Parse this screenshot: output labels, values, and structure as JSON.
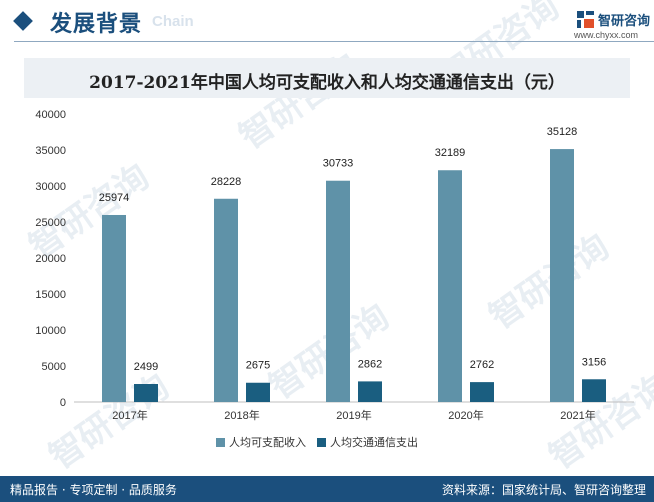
{
  "header": {
    "title": "发展背景",
    "title_en": "Chain",
    "brand_name": "智研咨询",
    "brand_url": "www.chyxx.com"
  },
  "watermark": {
    "text": "智研咨询"
  },
  "chart_data": {
    "type": "bar",
    "title": "2017-2021年中国人均可支配收入和人均交通通信支出（元）",
    "categories": [
      "2017年",
      "2018年",
      "2019年",
      "2020年",
      "2021年"
    ],
    "series": [
      {
        "name": "人均可支配收入",
        "values": [
          25974,
          28228,
          30733,
          32189,
          35128
        ],
        "color": "#5f92a8"
      },
      {
        "name": "人均交通通信支出",
        "values": [
          2499,
          2675,
          2862,
          2762,
          3156
        ],
        "color": "#1a5e80"
      }
    ],
    "ylim": [
      0,
      40000
    ],
    "yticks": [
      0,
      5000,
      10000,
      15000,
      20000,
      25000,
      30000,
      35000,
      40000
    ],
    "xlabel": "",
    "ylabel": "",
    "legend_position": "bottom",
    "grid": false
  },
  "footer": {
    "left": "精品报告 · 专项定制 · 品质服务",
    "right": "资料来源：国家统计局、智研咨询整理"
  }
}
